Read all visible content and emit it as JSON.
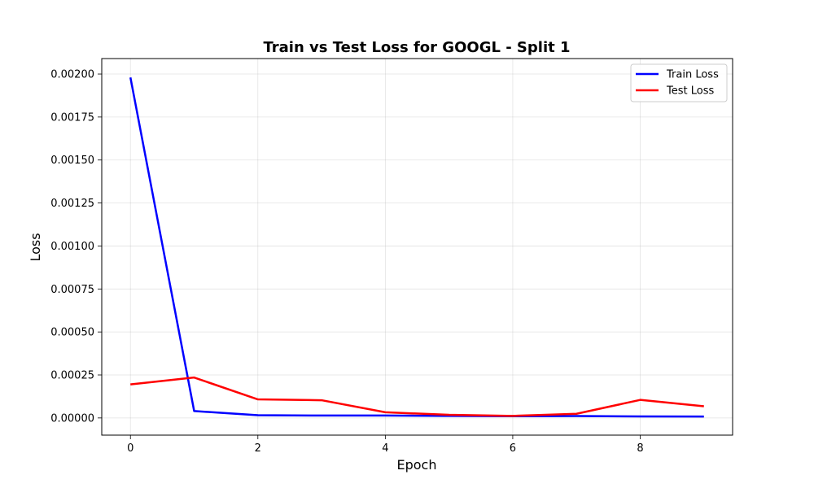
{
  "chart_data": {
    "type": "line",
    "title": "Train vs Test Loss for GOOGL - Split 1",
    "xlabel": "Epoch",
    "ylabel": "Loss",
    "x": [
      0,
      1,
      2,
      3,
      4,
      5,
      6,
      7,
      8,
      9
    ],
    "xlim": [
      -0.45,
      9.45
    ],
    "ylim": [
      -0.0001,
      0.00209
    ],
    "xticks": [
      0,
      2,
      4,
      6,
      8
    ],
    "xtick_labels": [
      "0",
      "2",
      "4",
      "6",
      "8"
    ],
    "yticks": [
      0,
      0.00025,
      0.0005,
      0.00075,
      0.001,
      0.00125,
      0.0015,
      0.00175,
      0.002
    ],
    "ytick_labels": [
      "0.00000",
      "0.00025",
      "0.00050",
      "0.00075",
      "0.00100",
      "0.00125",
      "0.00150",
      "0.00175",
      "0.00200"
    ],
    "grid": true,
    "legend_position": "top-right",
    "series": [
      {
        "name": "Train Loss",
        "color": "#0000ff",
        "values": [
          0.00198,
          4e-05,
          1.6e-05,
          1.4e-05,
          1.4e-05,
          1.2e-05,
          1e-05,
          1.1e-05,
          9e-06,
          8e-06
        ]
      },
      {
        "name": "Test Loss",
        "color": "#ff0000",
        "values": [
          0.000195,
          0.000235,
          0.000108,
          0.000103,
          3.3e-05,
          1.8e-05,
          1.2e-05,
          2.4e-05,
          0.000105,
          6.8e-05
        ]
      }
    ]
  }
}
